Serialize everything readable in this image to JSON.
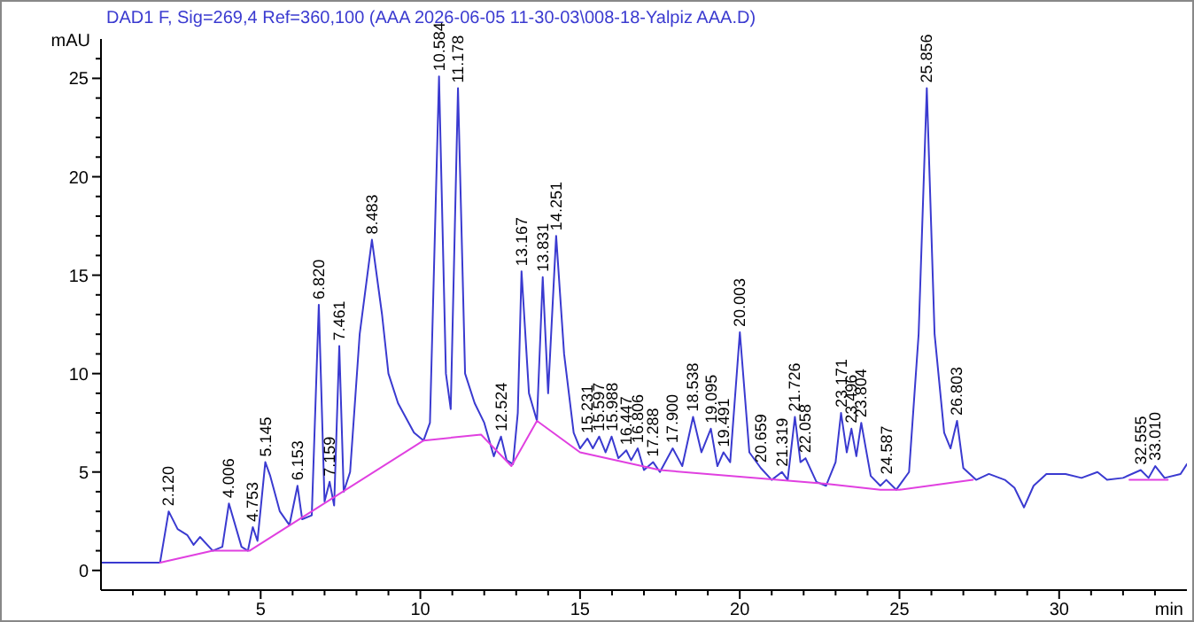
{
  "chart_data": {
    "type": "line",
    "title": "DAD1 F, Sig=269,4 Ref=360,100 (AAA 2026-06-05 11-30-03\\008-18-Yalpiz AAA.D)",
    "xlabel": "min",
    "ylabel": "mAU",
    "xlim": [
      0,
      34
    ],
    "ylim": [
      -1,
      27
    ],
    "xticks": [
      {
        "value": 1,
        "label": null
      },
      {
        "value": 2,
        "label": null
      },
      {
        "value": 3,
        "label": null
      },
      {
        "value": 4,
        "label": null
      },
      5,
      {
        "value": 6,
        "label": null
      },
      {
        "value": 7,
        "label": null
      },
      {
        "value": 8,
        "label": null
      },
      {
        "value": 9,
        "label": null
      },
      10,
      {
        "value": 11,
        "label": null
      },
      {
        "value": 12,
        "label": null
      },
      {
        "value": 13,
        "label": null
      },
      {
        "value": 14,
        "label": null
      },
      15,
      {
        "value": 16,
        "label": null
      },
      {
        "value": 17,
        "label": null
      },
      {
        "value": 18,
        "label": null
      },
      {
        "value": 19,
        "label": null
      },
      20,
      {
        "value": 21,
        "label": null
      },
      {
        "value": 22,
        "label": null
      },
      {
        "value": 23,
        "label": null
      },
      {
        "value": 24,
        "label": null
      },
      25,
      {
        "value": 26,
        "label": null
      },
      {
        "value": 27,
        "label": null
      },
      {
        "value": 28,
        "label": null
      },
      {
        "value": 29,
        "label": null
      },
      30,
      {
        "value": 31,
        "label": null
      },
      {
        "value": 32,
        "label": null
      },
      {
        "value": 33,
        "label": null
      }
    ],
    "yticks": [
      0,
      {
        "value": 1,
        "label": null
      },
      {
        "value": 2,
        "label": null
      },
      {
        "value": 3,
        "label": null
      },
      {
        "value": 4,
        "label": null
      },
      5,
      {
        "value": 6,
        "label": null
      },
      {
        "value": 7,
        "label": null
      },
      {
        "value": 8,
        "label": null
      },
      {
        "value": 9,
        "label": null
      },
      10,
      {
        "value": 11,
        "label": null
      },
      {
        "value": 12,
        "label": null
      },
      {
        "value": 13,
        "label": null
      },
      {
        "value": 14,
        "label": null
      },
      15,
      {
        "value": 16,
        "label": null
      },
      {
        "value": 17,
        "label": null
      },
      {
        "value": 18,
        "label": null
      },
      {
        "value": 19,
        "label": null
      },
      20,
      {
        "value": 21,
        "label": null
      },
      {
        "value": 22,
        "label": null
      },
      {
        "value": 23,
        "label": null
      },
      {
        "value": 24,
        "label": null
      },
      25,
      {
        "value": 26,
        "label": null
      }
    ],
    "series": [
      {
        "color": "#3a3ad0",
        "x": [
          0,
          1.85,
          2.12,
          2.4,
          2.7,
          2.9,
          3.1,
          3.5,
          3.8,
          4.006,
          4.4,
          4.6,
          4.753,
          4.9,
          5.145,
          5.3,
          5.6,
          5.9,
          6.153,
          6.3,
          6.6,
          6.82,
          7.0,
          7.159,
          7.3,
          7.461,
          7.6,
          7.8,
          8.1,
          8.483,
          8.8,
          9.0,
          9.3,
          9.8,
          10.1,
          10.3,
          10.584,
          10.8,
          10.95,
          11.178,
          11.4,
          11.7,
          12.0,
          12.3,
          12.524,
          12.7,
          12.9,
          13.05,
          13.167,
          13.4,
          13.65,
          13.831,
          14.0,
          14.251,
          14.5,
          14.8,
          15.0,
          15.231,
          15.4,
          15.597,
          15.8,
          15.988,
          16.2,
          16.447,
          16.6,
          16.806,
          17.0,
          17.288,
          17.5,
          17.9,
          18.2,
          18.538,
          18.8,
          19.095,
          19.3,
          19.491,
          19.7,
          20.003,
          20.3,
          20.659,
          21.0,
          21.319,
          21.5,
          21.726,
          21.9,
          22.058,
          22.4,
          22.7,
          23.0,
          23.171,
          23.35,
          23.496,
          23.65,
          23.804,
          24.1,
          24.4,
          24.587,
          24.9,
          25.3,
          25.6,
          25.856,
          26.1,
          26.4,
          26.6,
          26.803,
          27.0,
          27.4,
          27.8,
          28.3,
          28.6,
          28.9,
          29.2,
          29.6,
          30.2,
          30.7,
          31.2,
          31.5,
          32.0,
          32.555,
          32.8,
          33.01,
          33.3,
          33.8,
          34.0
        ],
        "values": [
          0.4,
          0.4,
          3.0,
          2.1,
          1.8,
          1.3,
          1.7,
          1.0,
          1.2,
          3.4,
          1.2,
          1.0,
          2.2,
          1.5,
          5.5,
          4.8,
          3.0,
          2.3,
          4.3,
          2.6,
          2.8,
          13.5,
          3.5,
          4.5,
          3.3,
          11.4,
          4.0,
          5.0,
          12,
          16.8,
          13,
          10,
          8.5,
          7.0,
          6.6,
          7.5,
          25.1,
          10,
          8.2,
          24.5,
          10,
          8.5,
          7.5,
          5.8,
          6.8,
          5.6,
          5.4,
          8,
          15.2,
          9,
          7.6,
          14.9,
          9.0,
          17.0,
          11,
          7,
          6.2,
          6.7,
          6.2,
          6.8,
          6.0,
          6.8,
          5.7,
          6.1,
          5.6,
          6.2,
          5.1,
          5.5,
          5.0,
          6.2,
          5.3,
          7.8,
          6.0,
          7.2,
          5.3,
          6.0,
          5.5,
          12.1,
          6.0,
          5.2,
          4.6,
          5.0,
          4.6,
          7.8,
          5.5,
          5.7,
          4.5,
          4.3,
          5.5,
          8.0,
          6.0,
          7.2,
          5.8,
          7.5,
          4.8,
          4.3,
          4.6,
          4.1,
          5.0,
          12,
          24.5,
          12,
          7,
          6.2,
          7.6,
          5.2,
          4.6,
          4.9,
          4.6,
          4.2,
          3.2,
          4.3,
          4.9,
          4.9,
          4.7,
          5.0,
          4.6,
          4.7,
          5.1,
          4.7,
          5.3,
          4.7,
          4.9,
          5.4
        ]
      },
      {
        "color": "#e040e0",
        "x": [
          1.85,
          3.5,
          4.65,
          10.1,
          11.9,
          12.85,
          13.65,
          15.0,
          17.5,
          22.7,
          24.4,
          25.0,
          27.3,
          29.0,
          32.2,
          33.4
        ],
        "values": [
          0.4,
          1.0,
          1.0,
          6.6,
          6.9,
          5.3,
          7.6,
          6.0,
          5.1,
          4.4,
          4.1,
          4.1,
          4.6,
          null,
          4.6,
          4.6
        ]
      }
    ],
    "annotations": [
      {
        "text": "2.120",
        "x": 2.12,
        "y": 3.0
      },
      {
        "text": "4.006",
        "x": 4.006,
        "y": 3.4
      },
      {
        "text": "4.753",
        "x": 4.753,
        "y": 2.2
      },
      {
        "text": "5.145",
        "x": 5.145,
        "y": 5.5
      },
      {
        "text": "6.153",
        "x": 6.153,
        "y": 4.3
      },
      {
        "text": "6.820",
        "x": 6.82,
        "y": 13.5
      },
      {
        "text": "7.159",
        "x": 7.159,
        "y": 4.5
      },
      {
        "text": "7.461",
        "x": 7.461,
        "y": 11.4
      },
      {
        "text": "8.483",
        "x": 8.483,
        "y": 16.8
      },
      {
        "text": "10.584",
        "x": 10.584,
        "y": 25.1
      },
      {
        "text": "11.178",
        "x": 11.178,
        "y": 24.5
      },
      {
        "text": "12.524",
        "x": 12.524,
        "y": 6.8
      },
      {
        "text": "13.167",
        "x": 13.167,
        "y": 15.2
      },
      {
        "text": "13.831",
        "x": 13.831,
        "y": 14.9
      },
      {
        "text": "14.251",
        "x": 14.251,
        "y": 17.0
      },
      {
        "text": "15.231",
        "x": 15.231,
        "y": 6.7
      },
      {
        "text": "15.597",
        "x": 15.597,
        "y": 6.8
      },
      {
        "text": "15.988",
        "x": 15.988,
        "y": 6.8
      },
      {
        "text": "16.447",
        "x": 16.447,
        "y": 6.1
      },
      {
        "text": "16.806",
        "x": 16.806,
        "y": 6.2
      },
      {
        "text": "17.288",
        "x": 17.288,
        "y": 5.5
      },
      {
        "text": "17.900",
        "x": 17.9,
        "y": 6.2
      },
      {
        "text": "18.538",
        "x": 18.538,
        "y": 7.8
      },
      {
        "text": "19.095",
        "x": 19.095,
        "y": 7.2
      },
      {
        "text": "19.491",
        "x": 19.491,
        "y": 6.0
      },
      {
        "text": "20.003",
        "x": 20.003,
        "y": 12.1
      },
      {
        "text": "20.659",
        "x": 20.659,
        "y": 5.2
      },
      {
        "text": "21.319",
        "x": 21.319,
        "y": 5.0
      },
      {
        "text": "21.726",
        "x": 21.726,
        "y": 7.8
      },
      {
        "text": "22.058",
        "x": 22.058,
        "y": 5.7
      },
      {
        "text": "23.171",
        "x": 23.171,
        "y": 8.0
      },
      {
        "text": "23.496",
        "x": 23.496,
        "y": 7.2
      },
      {
        "text": "23.804",
        "x": 23.804,
        "y": 7.5
      },
      {
        "text": "24.587",
        "x": 24.587,
        "y": 4.6
      },
      {
        "text": "25.856",
        "x": 25.856,
        "y": 24.5
      },
      {
        "text": "26.803",
        "x": 26.803,
        "y": 7.6
      },
      {
        "text": "32.555",
        "x": 32.555,
        "y": 5.1
      },
      {
        "text": "33.010",
        "x": 33.01,
        "y": 5.3
      }
    ]
  }
}
